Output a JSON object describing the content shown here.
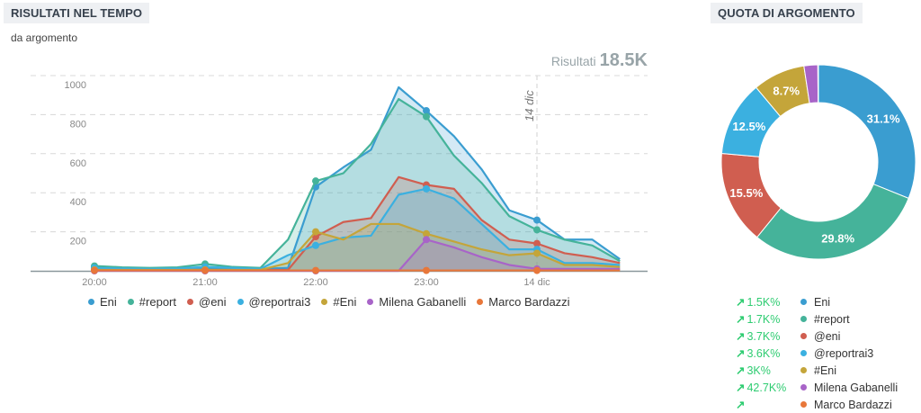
{
  "left_panel": {
    "title": "RISULTATI NEL TEMPO",
    "subtitle": "da argomento",
    "total_label": "Risultati",
    "total_value": "18.5K",
    "date_marker": "14 dic"
  },
  "right_panel": {
    "title": "QUOTA DI ARGOMENTO"
  },
  "colors": {
    "Eni": "#3a9dd0",
    "#report": "#45b39a",
    "@eni": "#d05e50",
    "@reportrai3": "#3bb0e0",
    "#Eni": "#c4a53a",
    "Milena Gabanelli": "#a864c8",
    "Marco Bardazzi": "#e8773a"
  },
  "legend": [
    {
      "name": "Eni",
      "color": "#3a9dd0"
    },
    {
      "name": "#report",
      "color": "#45b39a"
    },
    {
      "name": "@eni",
      "color": "#d05e50"
    },
    {
      "name": "@reportrai3",
      "color": "#3bb0e0"
    },
    {
      "name": "#Eni",
      "color": "#c4a53a"
    },
    {
      "name": "Milena Gabanelli",
      "color": "#a864c8"
    },
    {
      "name": "Marco Bardazzi",
      "color": "#e8773a"
    }
  ],
  "growth_legend": [
    {
      "growth": "1.5K%",
      "name": "Eni",
      "color": "#3a9dd0"
    },
    {
      "growth": "1.7K%",
      "name": "#report",
      "color": "#45b39a"
    },
    {
      "growth": "3.7K%",
      "name": "@eni",
      "color": "#d05e50"
    },
    {
      "growth": "3.6K%",
      "name": "@reportrai3",
      "color": "#3bb0e0"
    },
    {
      "growth": "3K%",
      "name": "#Eni",
      "color": "#c4a53a"
    },
    {
      "growth": "42.7K%",
      "name": "Milena Gabanelli",
      "color": "#a864c8"
    },
    {
      "growth": "",
      "name": "Marco Bardazzi",
      "color": "#e8773a"
    }
  ],
  "chart_data": [
    {
      "type": "area",
      "title": "RISULTATI NEL TEMPO",
      "subtitle": "da argomento",
      "xlabel": "",
      "ylabel": "",
      "ylim": [
        0,
        1000
      ],
      "yticks": [
        200,
        400,
        600,
        800,
        1000
      ],
      "xtick_labels": [
        "20:00",
        "21:00",
        "22:00",
        "23:00",
        "14 dic"
      ],
      "grid": true,
      "legend_position": "bottom",
      "x": [
        "20:00",
        "20:15",
        "20:30",
        "20:45",
        "21:00",
        "21:15",
        "21:30",
        "21:45",
        "22:00",
        "22:15",
        "22:30",
        "22:45",
        "23:00",
        "23:15",
        "23:30",
        "23:45",
        "00:00",
        "00:15",
        "00:30",
        "00:45"
      ],
      "series": [
        {
          "name": "Eni",
          "values": [
            20,
            15,
            12,
            15,
            15,
            10,
            10,
            15,
            430,
            530,
            620,
            940,
            820,
            690,
            520,
            310,
            260,
            160,
            160,
            60
          ]
        },
        {
          "name": "#report",
          "values": [
            25,
            18,
            15,
            18,
            35,
            20,
            15,
            160,
            460,
            500,
            650,
            880,
            790,
            590,
            450,
            280,
            210,
            160,
            130,
            50
          ]
        },
        {
          "name": "@eni",
          "values": [
            5,
            5,
            5,
            5,
            5,
            5,
            5,
            5,
            175,
            250,
            270,
            480,
            440,
            420,
            260,
            160,
            140,
            90,
            70,
            40
          ]
        },
        {
          "name": "@reportrai3",
          "values": [
            15,
            12,
            10,
            12,
            20,
            15,
            10,
            80,
            130,
            170,
            180,
            390,
            420,
            370,
            240,
            110,
            110,
            40,
            40,
            30
          ]
        },
        {
          "name": "#Eni",
          "values": [
            5,
            5,
            5,
            5,
            5,
            5,
            5,
            40,
            200,
            160,
            240,
            240,
            190,
            150,
            110,
            80,
            90,
            30,
            30,
            20
          ]
        },
        {
          "name": "Milena Gabanelli",
          "values": [
            0,
            0,
            0,
            0,
            0,
            0,
            0,
            0,
            0,
            0,
            0,
            0,
            160,
            120,
            70,
            30,
            10,
            10,
            10,
            10
          ]
        },
        {
          "name": "Marco Bardazzi",
          "values": [
            2,
            2,
            2,
            2,
            2,
            2,
            2,
            2,
            2,
            2,
            2,
            2,
            2,
            2,
            2,
            2,
            2,
            2,
            2,
            2
          ]
        }
      ],
      "annotations": [
        {
          "x": "00:00",
          "text": "14 dic"
        },
        {
          "text": "Risultati 18.5K"
        }
      ]
    },
    {
      "type": "pie",
      "donut": true,
      "title": "QUOTA DI ARGOMENTO",
      "categories": [
        "Eni",
        "#report",
        "@eni",
        "@reportrai3",
        "#Eni",
        "Milena Gabanelli",
        "Marco Bardazzi"
      ],
      "values": [
        31.1,
        29.8,
        15.5,
        12.5,
        8.7,
        2.3,
        0.1
      ],
      "labels": [
        "31.1%",
        "29.8%",
        "15.5%",
        "12.5%",
        "8.7%",
        "",
        ""
      ]
    }
  ]
}
